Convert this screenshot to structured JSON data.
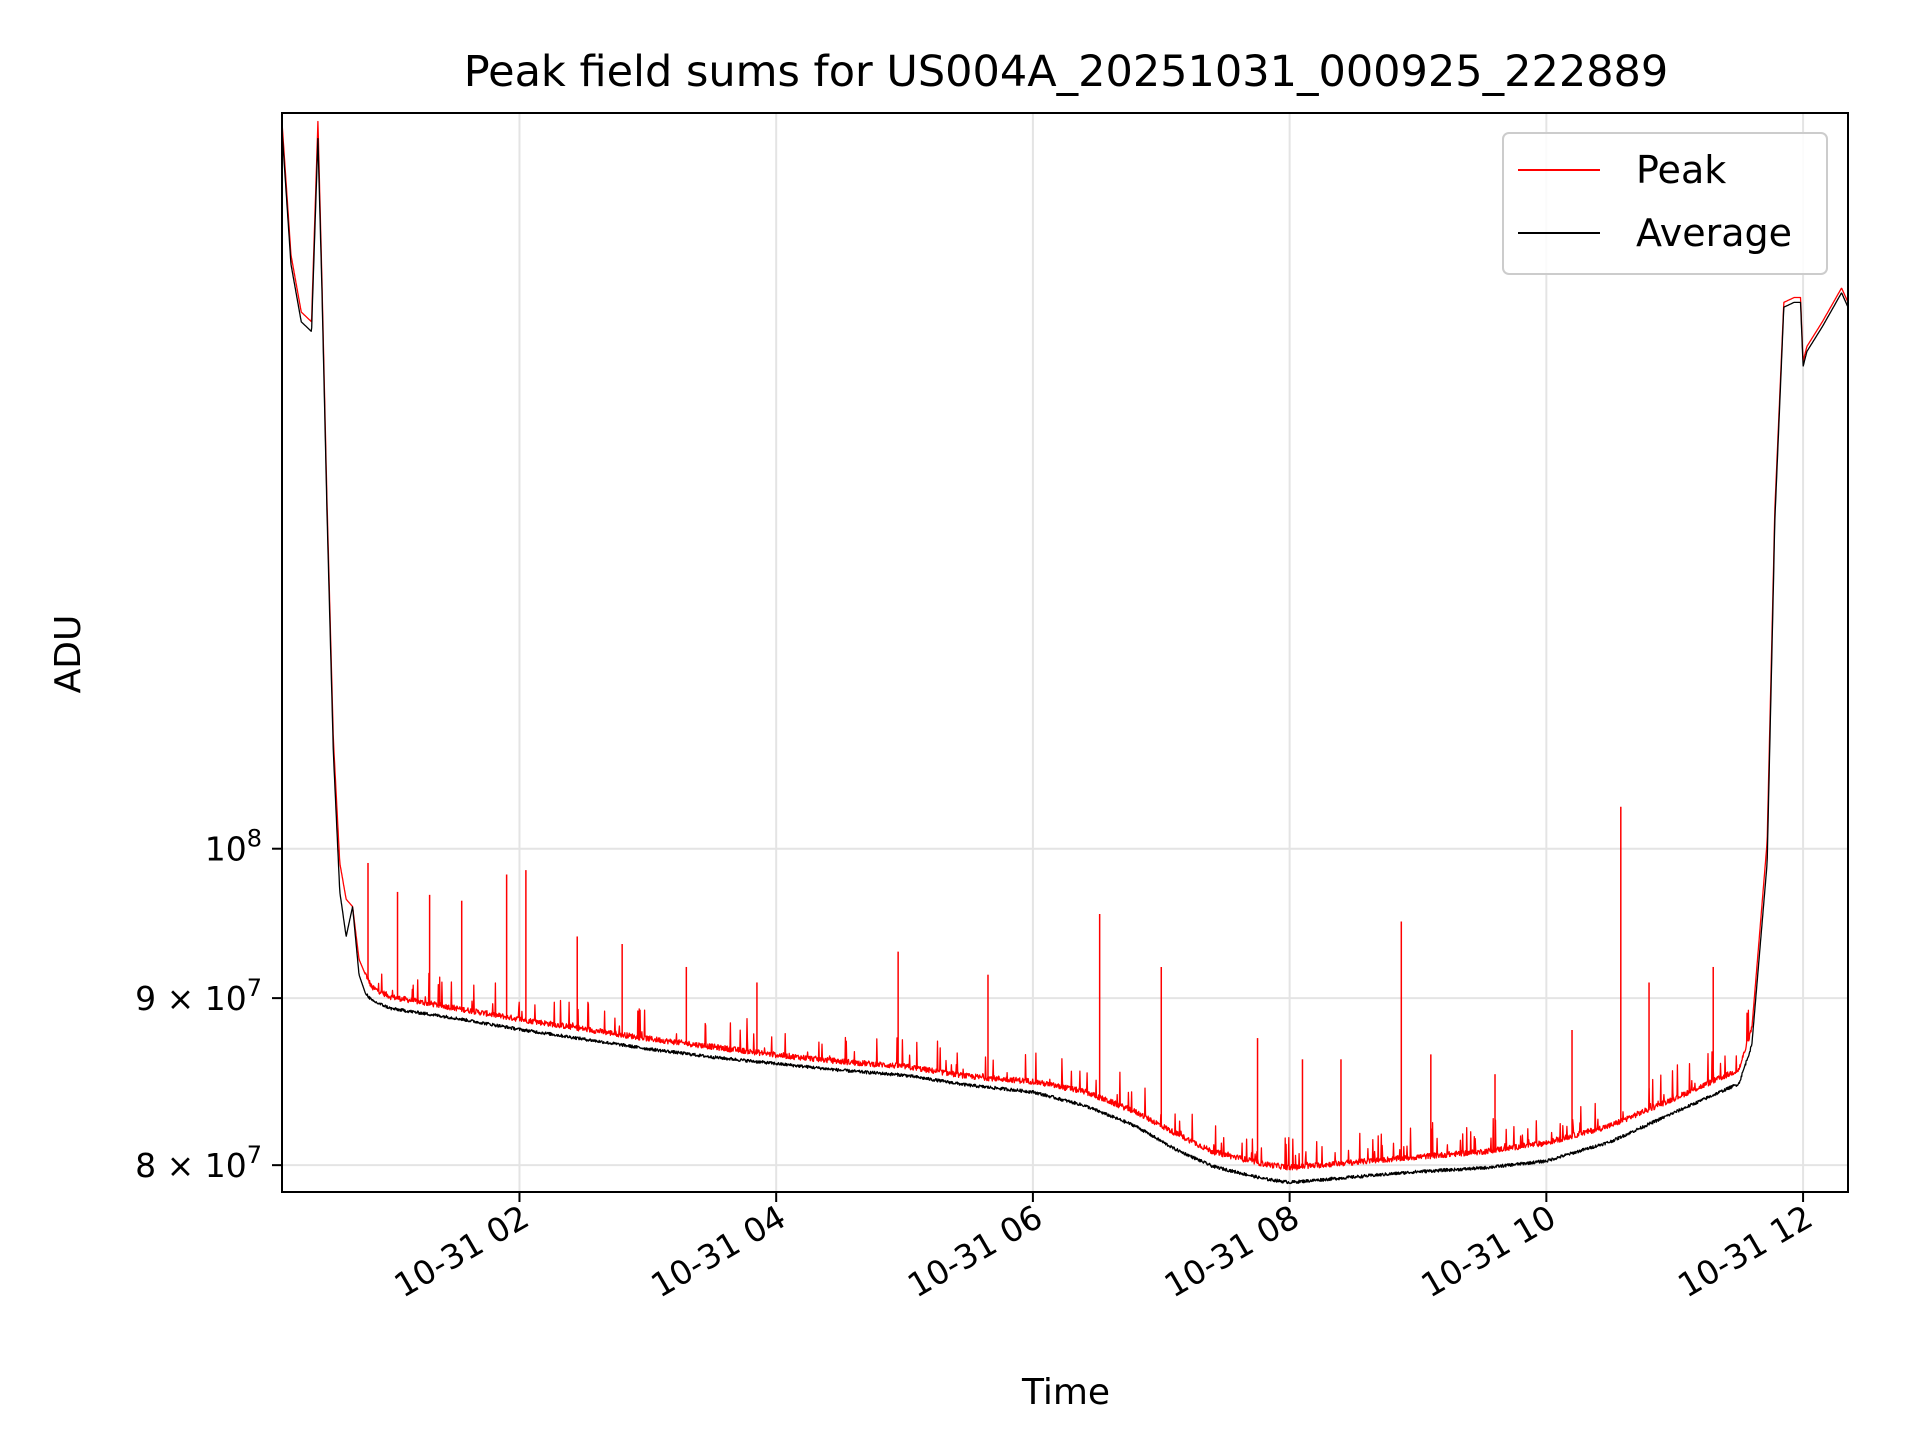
{
  "chart_data": {
    "type": "line",
    "title": "Peak field sums for US004A_20251031_000925_222889",
    "xlabel": "Time",
    "ylabel": "ADU",
    "y_scale": "log",
    "xlim": [
      0.15,
      12.35
    ],
    "ylim": [
      78500000,
      168000000
    ],
    "grid": true,
    "legend_position": "top-right",
    "x_ticks": [
      {
        "value": 2,
        "label": "10-31 02"
      },
      {
        "value": 4,
        "label": "10-31 04"
      },
      {
        "value": 6,
        "label": "10-31 06"
      },
      {
        "value": 8,
        "label": "10-31 08"
      },
      {
        "value": 10,
        "label": "10-31 10"
      },
      {
        "value": 12,
        "label": "10-31 12"
      }
    ],
    "y_ticks": [
      {
        "value": 80000000,
        "mantissa": "8",
        "sep": " × ",
        "base": "10",
        "exp": "7"
      },
      {
        "value": 90000000,
        "mantissa": "9",
        "sep": " × ",
        "base": "10",
        "exp": "7"
      },
      {
        "value": 100000000,
        "mantissa": "",
        "sep": "",
        "base": "10",
        "exp": "8"
      }
    ],
    "series": [
      {
        "name": "Peak",
        "color": "#ff0000",
        "x": [
          0.15,
          0.22,
          0.3,
          0.38,
          0.43,
          0.46,
          0.5,
          0.55,
          0.6,
          0.65,
          0.7,
          0.75,
          0.8,
          0.85,
          1.0,
          1.5,
          2.0,
          2.5,
          3.0,
          3.5,
          4.0,
          4.5,
          5.0,
          5.5,
          6.0,
          6.4,
          6.8,
          7.1,
          7.4,
          7.8,
          8.0,
          8.5,
          9.0,
          9.5,
          10.0,
          10.5,
          11.0,
          11.5,
          11.6,
          11.72,
          11.78,
          11.85,
          11.93,
          11.98,
          12.0,
          12.03,
          12.15,
          12.3,
          12.35
        ],
        "values": [
          167000000,
          152000000,
          146000000,
          145000000,
          167000000,
          150000000,
          128000000,
          108000000,
          99000000,
          96500000,
          96000000,
          92500000,
          91500000,
          90600000,
          90000000,
          89300000,
          88600000,
          88000000,
          87400000,
          86900000,
          86400000,
          86000000,
          85700000,
          85100000,
          84800000,
          84200000,
          83000000,
          81800000,
          80700000,
          80000000,
          79800000,
          80100000,
          80400000,
          80700000,
          81200000,
          82200000,
          83800000,
          85500000,
          88000000,
          100500000,
          127000000,
          147000000,
          147500000,
          147500000,
          141000000,
          142500000,
          145000000,
          148500000,
          147000000
        ],
        "spikes": [
          {
            "x": 0.82,
            "value": 99000000
          },
          {
            "x": 1.05,
            "value": 97000000
          },
          {
            "x": 1.3,
            "value": 96800000
          },
          {
            "x": 1.55,
            "value": 96400000
          },
          {
            "x": 1.9,
            "value": 98200000
          },
          {
            "x": 2.05,
            "value": 98500000
          },
          {
            "x": 2.45,
            "value": 94000000
          },
          {
            "x": 2.8,
            "value": 93500000
          },
          {
            "x": 3.3,
            "value": 92000000
          },
          {
            "x": 3.85,
            "value": 91000000
          },
          {
            "x": 4.95,
            "value": 93000000
          },
          {
            "x": 5.65,
            "value": 91500000
          },
          {
            "x": 6.52,
            "value": 95500000
          },
          {
            "x": 7.0,
            "value": 92000000
          },
          {
            "x": 7.75,
            "value": 87500000
          },
          {
            "x": 8.1,
            "value": 86200000
          },
          {
            "x": 8.4,
            "value": 86200000
          },
          {
            "x": 8.87,
            "value": 95000000
          },
          {
            "x": 9.1,
            "value": 86500000
          },
          {
            "x": 9.6,
            "value": 85300000
          },
          {
            "x": 10.2,
            "value": 88000000
          },
          {
            "x": 10.58,
            "value": 103000000
          },
          {
            "x": 10.8,
            "value": 91000000
          },
          {
            "x": 11.3,
            "value": 92000000
          }
        ]
      },
      {
        "name": "Average",
        "color": "#000000",
        "x": [
          0.15,
          0.22,
          0.3,
          0.38,
          0.43,
          0.46,
          0.5,
          0.55,
          0.6,
          0.65,
          0.7,
          0.75,
          0.8,
          0.85,
          1.0,
          1.5,
          2.0,
          2.5,
          3.0,
          3.5,
          4.0,
          4.5,
          5.0,
          5.5,
          6.0,
          6.4,
          6.8,
          7.1,
          7.4,
          7.8,
          8.0,
          8.5,
          9.0,
          9.5,
          10.0,
          10.5,
          11.0,
          11.5,
          11.6,
          11.72,
          11.78,
          11.85,
          11.93,
          11.98,
          12.0,
          12.03,
          12.15,
          12.3,
          12.35
        ],
        "values": [
          166000000,
          151000000,
          145000000,
          144000000,
          165000000,
          149000000,
          127000000,
          107000000,
          97000000,
          94000000,
          96000000,
          91500000,
          90300000,
          89800000,
          89300000,
          88700000,
          88000000,
          87400000,
          86800000,
          86300000,
          85900000,
          85500000,
          85200000,
          84600000,
          84200000,
          83400000,
          82200000,
          80900000,
          79900000,
          79200000,
          79000000,
          79300000,
          79600000,
          79800000,
          80200000,
          81300000,
          83000000,
          84700000,
          87000000,
          99000000,
          126000000,
          146500000,
          147000000,
          147000000,
          140500000,
          142000000,
          144500000,
          148000000,
          146500000
        ]
      }
    ]
  }
}
